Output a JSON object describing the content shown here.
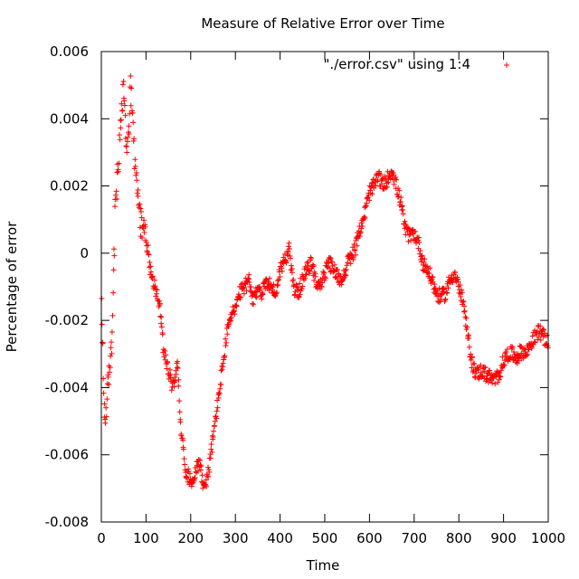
{
  "chart_data": {
    "type": "scatter",
    "title": "Measure of Relative Error over Time",
    "xlabel": "Time",
    "ylabel": "Percentage of error",
    "xlim": [
      0,
      1000
    ],
    "ylim": [
      -0.008,
      0.006
    ],
    "xticks": [
      0,
      100,
      200,
      300,
      400,
      500,
      600,
      700,
      800,
      900,
      1000
    ],
    "yticks": [
      -0.008,
      -0.006,
      -0.004,
      -0.002,
      0,
      0.002,
      0.004,
      0.006
    ],
    "xtick_labels": [
      "0",
      "100",
      "200",
      "300",
      "400",
      "500",
      "600",
      "700",
      "800",
      "900",
      "1000"
    ],
    "ytick_labels": [
      "-0.008",
      "-0.006",
      "-0.004",
      "-0.002",
      "0",
      "0.002",
      "0.004",
      "0.006"
    ],
    "grid": false,
    "legend": "top-right",
    "colors": {
      "series": "#ff0000",
      "axes": "#000000"
    },
    "marker": "plus",
    "series": [
      {
        "name": "\"./error.csv\" using 1:4",
        "trend": [
          [
            0,
            -0.0005
          ],
          [
            2,
            -0.0025
          ],
          [
            4,
            -0.0035
          ],
          [
            6,
            -0.0045
          ],
          [
            10,
            -0.0048
          ],
          [
            15,
            -0.004
          ],
          [
            20,
            -0.003
          ],
          [
            25,
            -0.0025
          ],
          [
            30,
            0.001
          ],
          [
            35,
            0.002
          ],
          [
            40,
            0.003
          ],
          [
            45,
            0.004
          ],
          [
            50,
            0.005
          ],
          [
            55,
            0.0035
          ],
          [
            60,
            0.003
          ],
          [
            65,
            0.0049
          ],
          [
            70,
            0.004
          ],
          [
            75,
            0.0025
          ],
          [
            80,
            0.002
          ],
          [
            85,
            0.0012
          ],
          [
            90,
            0.0008
          ],
          [
            100,
            0.0005
          ],
          [
            110,
            -0.0005
          ],
          [
            120,
            -0.001
          ],
          [
            130,
            -0.0015
          ],
          [
            140,
            -0.003
          ],
          [
            150,
            -0.0035
          ],
          [
            160,
            -0.004
          ],
          [
            170,
            -0.0033
          ],
          [
            180,
            -0.0055
          ],
          [
            190,
            -0.0065
          ],
          [
            200,
            -0.0068
          ],
          [
            210,
            -0.0065
          ],
          [
            220,
            -0.0062
          ],
          [
            230,
            -0.007
          ],
          [
            240,
            -0.0065
          ],
          [
            250,
            -0.0055
          ],
          [
            260,
            -0.0045
          ],
          [
            270,
            -0.0035
          ],
          [
            280,
            -0.0025
          ],
          [
            290,
            -0.0018
          ],
          [
            300,
            -0.0017
          ],
          [
            310,
            -0.0012
          ],
          [
            320,
            -0.001
          ],
          [
            330,
            -0.0008
          ],
          [
            340,
            -0.0015
          ],
          [
            350,
            -0.001
          ],
          [
            360,
            -0.0012
          ],
          [
            370,
            -0.0008
          ],
          [
            380,
            -0.001
          ],
          [
            390,
            -0.0012
          ],
          [
            400,
            -0.0005
          ],
          [
            410,
            -0.0002
          ],
          [
            420,
            0.0001
          ],
          [
            430,
            -0.001
          ],
          [
            440,
            -0.0012
          ],
          [
            450,
            -0.0008
          ],
          [
            460,
            -0.0005
          ],
          [
            470,
            -0.0003
          ],
          [
            480,
            -0.0008
          ],
          [
            490,
            -0.001
          ],
          [
            500,
            -0.0006
          ],
          [
            510,
            -0.0003
          ],
          [
            520,
            -0.0005
          ],
          [
            530,
            -0.0007
          ],
          [
            540,
            -0.0008
          ],
          [
            550,
            -0.0003
          ],
          [
            560,
            -0.0001
          ],
          [
            570,
            0.0002
          ],
          [
            580,
            0.0008
          ],
          [
            590,
            0.0012
          ],
          [
            600,
            0.0018
          ],
          [
            610,
            0.002
          ],
          [
            620,
            0.0023
          ],
          [
            630,
            0.002
          ],
          [
            640,
            0.0022
          ],
          [
            650,
            0.0025
          ],
          [
            660,
            0.002
          ],
          [
            670,
            0.0015
          ],
          [
            680,
            0.0007
          ],
          [
            690,
            0.0005
          ],
          [
            700,
            0.0006
          ],
          [
            710,
            0.0003
          ],
          [
            720,
            -0.0003
          ],
          [
            730,
            -0.0005
          ],
          [
            740,
            -0.0008
          ],
          [
            750,
            -0.0012
          ],
          [
            760,
            -0.0013
          ],
          [
            770,
            -0.0012
          ],
          [
            780,
            -0.0008
          ],
          [
            790,
            -0.0006
          ],
          [
            800,
            -0.001
          ],
          [
            810,
            -0.0015
          ],
          [
            820,
            -0.0025
          ],
          [
            830,
            -0.0033
          ],
          [
            840,
            -0.0036
          ],
          [
            850,
            -0.0035
          ],
          [
            860,
            -0.0036
          ],
          [
            870,
            -0.0037
          ],
          [
            880,
            -0.0038
          ],
          [
            890,
            -0.0036
          ],
          [
            900,
            -0.0032
          ],
          [
            910,
            -0.003
          ],
          [
            920,
            -0.003
          ],
          [
            930,
            -0.0031
          ],
          [
            940,
            -0.0029
          ],
          [
            950,
            -0.003
          ],
          [
            960,
            -0.0027
          ],
          [
            970,
            -0.0025
          ],
          [
            980,
            -0.0023
          ],
          [
            990,
            -0.0025
          ],
          [
            1000,
            -0.0027
          ]
        ]
      }
    ]
  }
}
